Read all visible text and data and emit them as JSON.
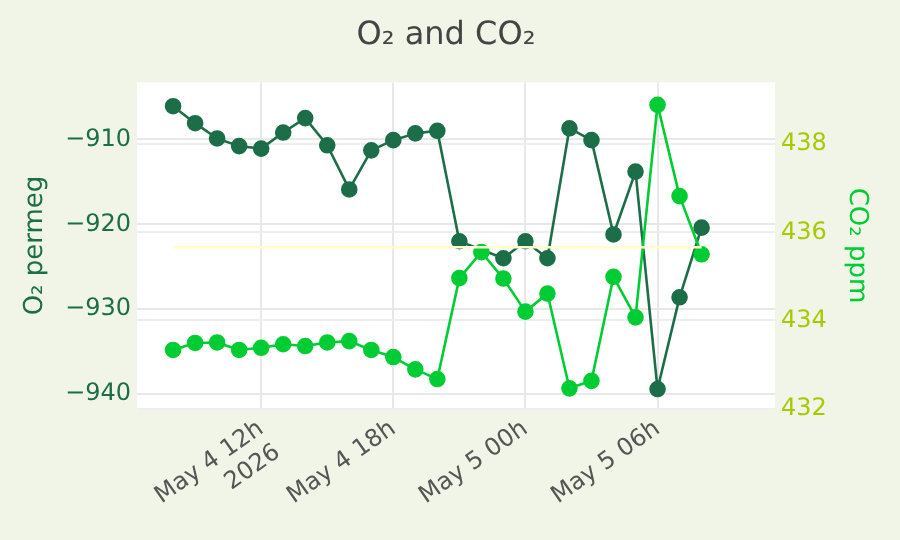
{
  "chart_data": {
    "type": "line",
    "title": "O₂ and CO₂",
    "ylabel": "O₂ permeg",
    "y2label": "CO₂ ppm",
    "x": [
      "2026-05-04T08:00",
      "2026-05-04T09:00",
      "2026-05-04T10:00",
      "2026-05-04T11:00",
      "2026-05-04T12:00",
      "2026-05-04T13:00",
      "2026-05-04T14:00",
      "2026-05-04T15:00",
      "2026-05-04T16:00",
      "2026-05-04T17:00",
      "2026-05-04T18:00",
      "2026-05-04T19:00",
      "2026-05-04T20:00",
      "2026-05-04T21:00",
      "2026-05-04T22:00",
      "2026-05-04T23:00",
      "2026-05-05T00:00",
      "2026-05-05T01:00",
      "2026-05-05T02:00",
      "2026-05-05T03:00",
      "2026-05-05T04:00",
      "2026-05-05T05:00",
      "2026-05-05T06:00",
      "2026-05-05T07:00",
      "2026-05-05T08:00"
    ],
    "series": [
      {
        "color": "#1b6e47",
        "values": [
          -906.1,
          -908.1,
          -909.9,
          -910.8,
          -911.1,
          -909.2,
          -907.5,
          -910.7,
          -915.9,
          -911.3,
          -910.1,
          -909.3,
          -909.0,
          -922.0,
          null,
          -924.0,
          -922.0,
          -924.0,
          -908.7,
          -910.1,
          -921.2,
          -913.8,
          -939.4,
          -928.6,
          -920.4
        ]
      },
      {
        "color": "#00cc33",
        "axis": "y2",
        "values": [
          433.33,
          433.49,
          433.5,
          433.33,
          433.38,
          433.46,
          433.42,
          433.5,
          433.53,
          433.33,
          433.17,
          432.89,
          432.67,
          434.96,
          435.55,
          434.95,
          434.2,
          434.61,
          432.46,
          432.63,
          434.99,
          434.07,
          438.89,
          436.82,
          435.5
        ]
      },
      {
        "color": "#ffffcc",
        "marker": "none",
        "x": [
          "2026-05-04T08:00",
          "2026-05-05T08:00"
        ],
        "values": [
          -922.7,
          -922.7
        ]
      }
    ],
    "xlim": [
      "2026-05-04T06:22",
      "2026-05-05T11:20"
    ],
    "xticks": [
      {
        "value": "2026-05-04T12:00",
        "label": "May 4 12h\n2026"
      },
      {
        "value": "2026-05-04T18:00",
        "label": "May 4 18h"
      },
      {
        "value": "2026-05-05T00:00",
        "label": "May 5 00h"
      },
      {
        "value": "2026-05-05T06:00",
        "label": "May 5 06h"
      }
    ],
    "ylim": [
      -941.7,
      -903.3
    ],
    "yticks": [
      -940,
      -930,
      -920,
      -910
    ],
    "y2lim": [
      432,
      439.4
    ],
    "y2ticks": [
      432,
      434,
      436,
      438
    ],
    "grid": true,
    "marker": "circle"
  }
}
